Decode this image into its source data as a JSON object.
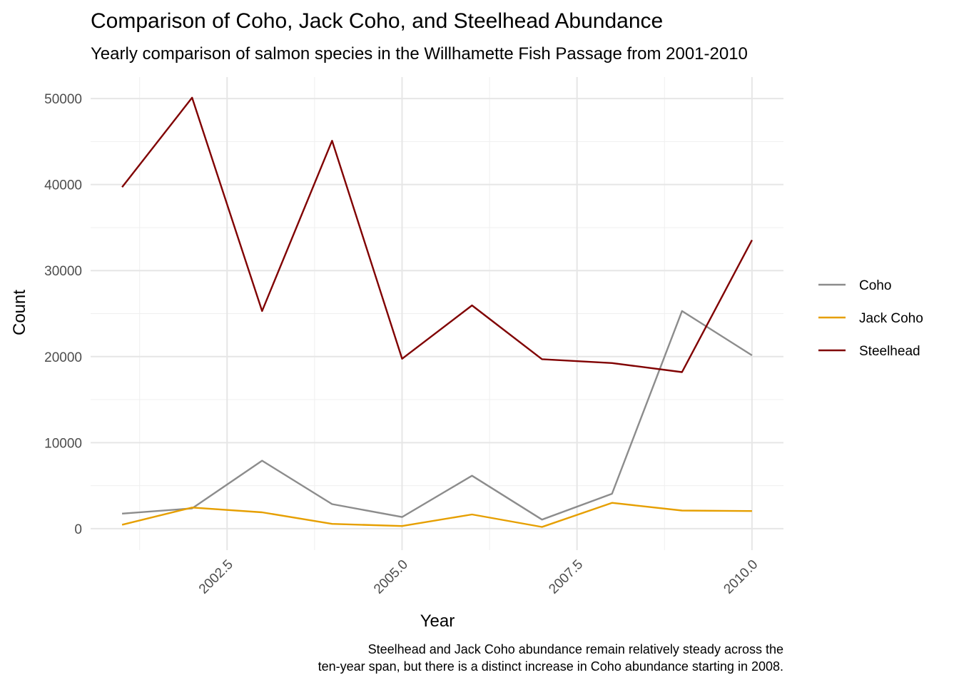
{
  "chart_data": {
    "type": "line",
    "title": "Comparison of Coho, Jack Coho, and Steelhead Abundance",
    "subtitle": "Yearly comparison of salmon species in the Willhamette Fish Passage from 2001-2010",
    "xlabel": "Year",
    "ylabel": "Count",
    "caption_lines": [
      "Steelhead and Jack Coho abundance remain relatively steady across the",
      "ten-year span, but there is a distinct increase in Coho abundance starting in 2008."
    ],
    "xlim": [
      2000.55,
      2010.45
    ],
    "ylim": [
      -2500,
      52500
    ],
    "x_ticks": [
      2002.5,
      2005.0,
      2007.5,
      2010.0
    ],
    "x_tick_labels": [
      "2002.5",
      "2005.0",
      "2007.5",
      "2010.0"
    ],
    "x_minor_ticks": [
      2001.25,
      2003.75,
      2006.25,
      2008.75
    ],
    "y_ticks": [
      0,
      10000,
      20000,
      30000,
      40000,
      50000
    ],
    "y_tick_labels": [
      "0",
      "10000",
      "20000",
      "30000",
      "40000",
      "50000"
    ],
    "y_minor_ticks": [
      5000,
      15000,
      25000,
      35000,
      45000
    ],
    "grid": true,
    "legend_position": "right",
    "x": [
      2001,
      2002,
      2003,
      2004,
      2005,
      2006,
      2007,
      2008,
      2009,
      2010
    ],
    "series": [
      {
        "name": "Coho",
        "color": "#8c8c8c",
        "values": [
          1750,
          2350,
          7900,
          2850,
          1350,
          6150,
          1050,
          4050,
          25300,
          20150
        ]
      },
      {
        "name": "Jack Coho",
        "color": "#e69f00",
        "values": [
          450,
          2450,
          1900,
          550,
          300,
          1650,
          200,
          3000,
          2100,
          2050
        ]
      },
      {
        "name": "Steelhead",
        "color": "#800000",
        "values": [
          39700,
          50100,
          25300,
          45100,
          19750,
          25950,
          19700,
          19250,
          18200,
          33550
        ]
      }
    ]
  }
}
